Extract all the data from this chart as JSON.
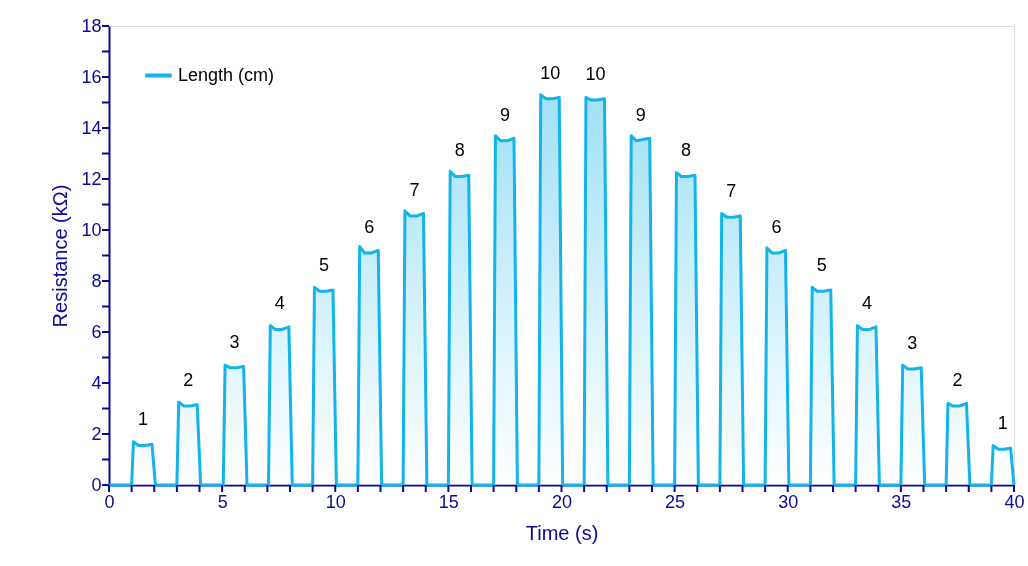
{
  "chart_data": {
    "type": "area",
    "xlabel": "Time (s)",
    "ylabel": "Resistance (kΩ)",
    "xlim": [
      0,
      40
    ],
    "ylim": [
      0,
      18
    ],
    "xticks": [
      0,
      {
        "value": 1,
        "label": null
      },
      {
        "value": 2,
        "label": null
      },
      {
        "value": 3,
        "label": null
      },
      {
        "value": 4,
        "label": null
      },
      5,
      {
        "value": 6,
        "label": null
      },
      {
        "value": 7,
        "label": null
      },
      {
        "value": 8,
        "label": null
      },
      {
        "value": 9,
        "label": null
      },
      10,
      {
        "value": 11,
        "label": null
      },
      {
        "value": 12,
        "label": null
      },
      {
        "value": 13,
        "label": null
      },
      {
        "value": 14,
        "label": null
      },
      15,
      {
        "value": 16,
        "label": null
      },
      {
        "value": 17,
        "label": null
      },
      {
        "value": 18,
        "label": null
      },
      {
        "value": 19,
        "label": null
      },
      20,
      {
        "value": 21,
        "label": null
      },
      {
        "value": 22,
        "label": null
      },
      {
        "value": 23,
        "label": null
      },
      {
        "value": 24,
        "label": null
      },
      25,
      {
        "value": 26,
        "label": null
      },
      {
        "value": 27,
        "label": null
      },
      {
        "value": 28,
        "label": null
      },
      {
        "value": 29,
        "label": null
      },
      30,
      {
        "value": 31,
        "label": null
      },
      {
        "value": 32,
        "label": null
      },
      {
        "value": 33,
        "label": null
      },
      {
        "value": 34,
        "label": null
      },
      35,
      {
        "value": 36,
        "label": null
      },
      {
        "value": 37,
        "label": null
      },
      {
        "value": 38,
        "label": null
      },
      {
        "value": 39,
        "label": null
      },
      40
    ],
    "yticks": [
      0,
      {
        "value": 1,
        "label": null
      },
      2,
      {
        "value": 3,
        "label": null
      },
      4,
      {
        "value": 5,
        "label": null
      },
      6,
      {
        "value": 7,
        "label": null
      },
      8,
      {
        "value": 9,
        "label": null
      },
      10,
      {
        "value": 11,
        "label": null
      },
      12,
      {
        "value": 13,
        "label": null
      },
      14,
      {
        "value": 15,
        "label": null
      },
      16,
      {
        "value": 17,
        "label": null
      },
      18
    ],
    "grid": false,
    "legend": "top left",
    "marker": "none",
    "line_style": "solid",
    "series": [
      {
        "name": "Length (cm)",
        "color": "#12b4ea",
        "x": [
          0,
          1.0,
          1.08,
          1.3,
          1.6,
          1.9,
          2.05,
          3.0,
          3.08,
          3.3,
          3.6,
          3.9,
          4.05,
          5.05,
          5.13,
          5.35,
          5.65,
          5.95,
          6.1,
          7.05,
          7.13,
          7.35,
          7.65,
          7.95,
          8.1,
          9.0,
          9.08,
          9.3,
          9.6,
          9.9,
          10.05,
          11.0,
          11.08,
          11.3,
          11.6,
          11.9,
          12.05,
          13.0,
          13.08,
          13.3,
          13.6,
          13.9,
          14.05,
          15.0,
          15.08,
          15.3,
          15.6,
          15.9,
          16.05,
          17.0,
          17.08,
          17.3,
          17.6,
          17.9,
          18.05,
          19.0,
          19.08,
          19.3,
          19.6,
          19.9,
          20.05,
          21.0,
          21.08,
          21.3,
          21.6,
          21.9,
          22.05,
          23.0,
          23.08,
          23.3,
          23.6,
          23.9,
          24.05,
          25.0,
          25.08,
          25.3,
          25.6,
          25.9,
          26.05,
          27.0,
          27.08,
          27.3,
          27.6,
          27.9,
          28.05,
          29.0,
          29.08,
          29.3,
          29.6,
          29.9,
          30.05,
          31.0,
          31.08,
          31.3,
          31.6,
          31.9,
          32.05,
          33.0,
          33.08,
          33.3,
          33.6,
          33.9,
          34.05,
          35.0,
          35.08,
          35.3,
          35.6,
          35.9,
          36.05,
          37.0,
          37.08,
          37.3,
          37.6,
          37.9,
          38.05,
          39.0,
          39.08,
          39.3,
          39.6,
          39.85,
          40
        ],
        "values": [
          0,
          0,
          1.7,
          1.55,
          1.55,
          1.6,
          0,
          0,
          3.25,
          3.1,
          3.1,
          3.15,
          0,
          0,
          4.7,
          4.6,
          4.6,
          4.65,
          0,
          0,
          6.25,
          6.1,
          6.1,
          6.2,
          0,
          0,
          7.75,
          7.6,
          7.6,
          7.65,
          0,
          0,
          9.35,
          9.1,
          9.1,
          9.2,
          0,
          0,
          10.75,
          10.55,
          10.55,
          10.65,
          0,
          0,
          12.3,
          12.1,
          12.1,
          12.15,
          0,
          0,
          13.7,
          13.5,
          13.5,
          13.6,
          0,
          0,
          15.3,
          15.15,
          15.15,
          15.2,
          0,
          0,
          15.2,
          15.1,
          15.1,
          15.15,
          0,
          0,
          13.7,
          13.5,
          13.55,
          13.6,
          0,
          0,
          12.25,
          12.1,
          12.1,
          12.15,
          0,
          0,
          10.65,
          10.5,
          10.5,
          10.55,
          0,
          0,
          9.3,
          9.1,
          9.1,
          9.2,
          0,
          0,
          7.75,
          7.6,
          7.6,
          7.65,
          0,
          0,
          6.25,
          6.1,
          6.1,
          6.2,
          0,
          0,
          4.7,
          4.55,
          4.55,
          4.6,
          0,
          0,
          3.2,
          3.1,
          3.1,
          3.2,
          0,
          0,
          1.55,
          1.4,
          1.4,
          1.45,
          0
        ]
      }
    ],
    "annotations": [
      {
        "text": "1",
        "x": 1.5,
        "y": 1.55
      },
      {
        "text": "2",
        "x": 3.5,
        "y": 3.1
      },
      {
        "text": "3",
        "x": 5.55,
        "y": 4.6
      },
      {
        "text": "4",
        "x": 7.55,
        "y": 6.1
      },
      {
        "text": "5",
        "x": 9.5,
        "y": 7.6
      },
      {
        "text": "6",
        "x": 11.5,
        "y": 9.1
      },
      {
        "text": "7",
        "x": 13.5,
        "y": 10.55
      },
      {
        "text": "8",
        "x": 15.5,
        "y": 12.1
      },
      {
        "text": "9",
        "x": 17.5,
        "y": 13.5
      },
      {
        "text": "10",
        "x": 19.5,
        "y": 15.15
      },
      {
        "text": "10",
        "x": 21.5,
        "y": 15.1
      },
      {
        "text": "9",
        "x": 23.5,
        "y": 13.5
      },
      {
        "text": "8",
        "x": 25.5,
        "y": 12.1
      },
      {
        "text": "7",
        "x": 27.5,
        "y": 10.5
      },
      {
        "text": "6",
        "x": 29.5,
        "y": 9.1
      },
      {
        "text": "5",
        "x": 31.5,
        "y": 7.6
      },
      {
        "text": "4",
        "x": 33.5,
        "y": 6.1
      },
      {
        "text": "3",
        "x": 35.5,
        "y": 4.55
      },
      {
        "text": "2",
        "x": 37.5,
        "y": 3.1
      },
      {
        "text": "1",
        "x": 39.5,
        "y": 1.4
      }
    ]
  }
}
